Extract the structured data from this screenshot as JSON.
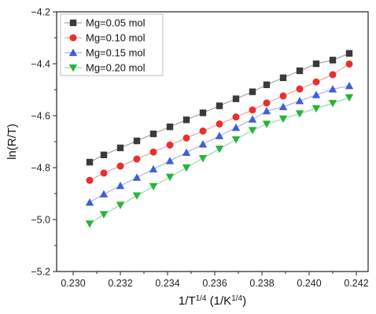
{
  "chart_data": {
    "type": "line",
    "title": "",
    "xlabel_parts": [
      "1/T",
      "1/4",
      " (1/K",
      "1/4",
      ")"
    ],
    "ylabel": "ln(R/T)",
    "xlim": [
      0.2293,
      0.2425
    ],
    "ylim": [
      -5.2,
      -4.2
    ],
    "xticks": [
      0.23,
      0.232,
      0.234,
      0.236,
      0.238,
      0.24,
      0.242
    ],
    "xtick_labels": [
      "0.230",
      "0.232",
      "0.234",
      "0.236",
      "0.238",
      "0.240",
      "0.242"
    ],
    "yticks": [
      -5.2,
      -5.0,
      -4.8,
      -4.6,
      -4.4,
      -4.2
    ],
    "ytick_labels": [
      "−5.2",
      "−5.0",
      "−4.8",
      "−4.6",
      "−4.4",
      "−4.2"
    ],
    "grid": false,
    "legend_position": "top-left",
    "x": [
      0.2307,
      0.2313,
      0.232,
      0.2327,
      0.2334,
      0.2341,
      0.2348,
      0.2355,
      0.2362,
      0.2369,
      0.2376,
      0.2382,
      0.2389,
      0.2396,
      0.2403,
      0.241,
      0.2417
    ],
    "series": [
      {
        "name": "Mg=0.05 mol",
        "marker": "square",
        "color": "#3a3a3a",
        "values": [
          -4.779,
          -4.751,
          -4.724,
          -4.697,
          -4.67,
          -4.643,
          -4.616,
          -4.589,
          -4.562,
          -4.535,
          -4.508,
          -4.481,
          -4.454,
          -4.427,
          -4.4,
          -4.386,
          -4.36
        ]
      },
      {
        "name": "Mg=0.10 mol",
        "marker": "circle",
        "color": "#e8302f",
        "values": [
          -4.849,
          -4.821,
          -4.794,
          -4.767,
          -4.74,
          -4.713,
          -4.686,
          -4.659,
          -4.632,
          -4.605,
          -4.578,
          -4.551,
          -4.524,
          -4.497,
          -4.47,
          -4.442,
          -4.401
        ]
      },
      {
        "name": "Mg=0.15 mol",
        "marker": "triangle-up",
        "color": "#3e5fd9",
        "values": [
          -4.934,
          -4.902,
          -4.87,
          -4.838,
          -4.806,
          -4.774,
          -4.742,
          -4.71,
          -4.678,
          -4.646,
          -4.614,
          -4.582,
          -4.566,
          -4.543,
          -4.52,
          -4.498,
          -4.485
        ]
      },
      {
        "name": "Mg=0.20 mol",
        "marker": "triangle-down",
        "color": "#27b43c",
        "values": [
          -5.016,
          -4.98,
          -4.944,
          -4.908,
          -4.872,
          -4.836,
          -4.8,
          -4.764,
          -4.728,
          -4.692,
          -4.656,
          -4.632,
          -4.612,
          -4.592,
          -4.572,
          -4.552,
          -4.53
        ]
      }
    ]
  }
}
